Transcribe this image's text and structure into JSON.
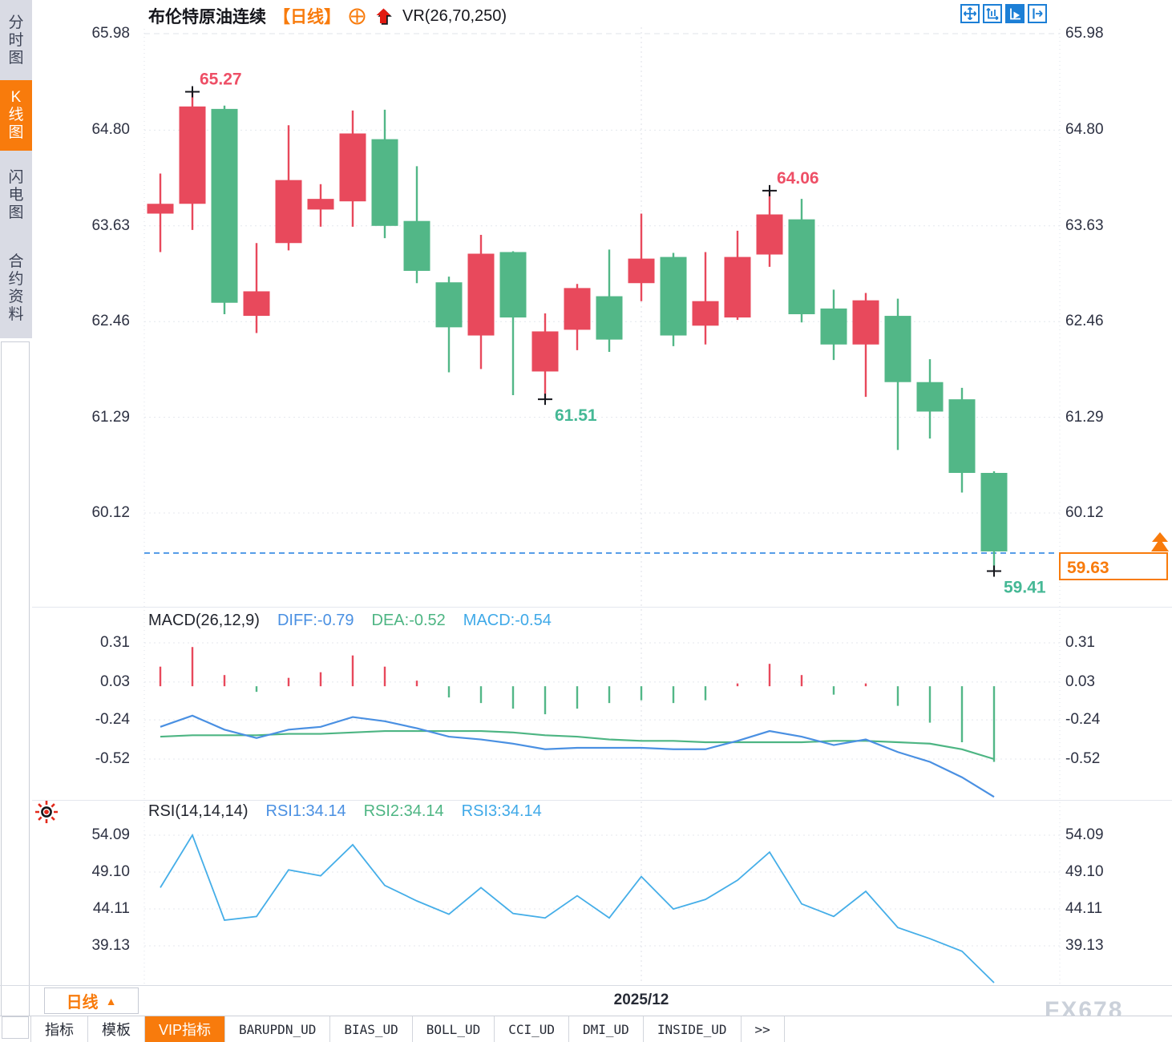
{
  "header": {
    "title": "布伦特原油连续",
    "period_tag": "【日线】",
    "vr_label": "VR(26,70,250)"
  },
  "icons": {
    "add_indicator": "circle-plus-icon",
    "signal_arrow": "red-up-arrow-icon",
    "toolbar": [
      "crosshair-move-icon",
      "axis-zoom-icon",
      "auto-scale-icon",
      "pan-right-icon"
    ],
    "rsi_settings": "sun-icon",
    "period_arrow": "up-triangle-icon",
    "price_tag_arrow": "orange-up-arrow-icon"
  },
  "sidebar": {
    "items": [
      {
        "label": "分时图",
        "active": false
      },
      {
        "label": "K线图",
        "active": true
      },
      {
        "label": "闪电图",
        "active": false
      },
      {
        "label": "合约资料",
        "active": false
      }
    ]
  },
  "price_panel": {
    "axis_labels": [
      "65.98",
      "64.80",
      "63.63",
      "62.46",
      "61.29",
      "60.12"
    ],
    "current_price": "59.63",
    "annotations": [
      "65.27",
      "64.06",
      "61.51",
      "59.41"
    ]
  },
  "macd_panel": {
    "title": "MACD(26,12,9)",
    "diff_label": "DIFF:-0.79",
    "dea_label": "DEA:-0.52",
    "macd_label": "MACD:-0.54",
    "axis_labels": [
      "0.31",
      "0.03",
      "-0.24",
      "-0.52"
    ]
  },
  "rsi_panel": {
    "title": "RSI(14,14,14)",
    "rsi1_label": "RSI1:34.14",
    "rsi2_label": "RSI2:34.14",
    "rsi3_label": "RSI3:34.14",
    "axis_labels": [
      "54.09",
      "49.10",
      "44.11",
      "39.13"
    ]
  },
  "bottom": {
    "period_button": "日线",
    "period_arrow": "▲",
    "date_label": "2025/12",
    "watermark": "FX678",
    "tabs": [
      {
        "label": "指标",
        "active": false
      },
      {
        "label": "模板",
        "active": false
      },
      {
        "label": "VIP指标",
        "active": true
      },
      {
        "label": "BARUPDN_UD",
        "active": false
      },
      {
        "label": "BIAS_UD",
        "active": false
      },
      {
        "label": "BOLL_UD",
        "active": false
      },
      {
        "label": "CCI_UD",
        "active": false
      },
      {
        "label": "DMI_UD",
        "active": false
      },
      {
        "label": "INSIDE_UD",
        "active": false
      },
      {
        "label": ">>",
        "active": false
      }
    ]
  },
  "colors": {
    "up": "#e8495c",
    "down": "#52b787",
    "accent_orange": "#f87b0c",
    "diff_blue": "#4a90e2",
    "dea_green": "#4db583",
    "rsi_blue": "#45aee8",
    "price_line_blue": "#1f7de0",
    "annotation_red": "#ee4f66",
    "annotation_teal": "#45b895",
    "grid": "#e4e7ed",
    "marker_black": "#15161c"
  },
  "chart_data": [
    {
      "type": "candlestick",
      "title": "布伦特原油连续 日线",
      "ylim": [
        59.2,
        66.1
      ],
      "x_period_label": "2025/12",
      "current_price": 59.63,
      "annotations": [
        {
          "text": "65.27",
          "index": 1,
          "at": "high"
        },
        {
          "text": "64.06",
          "index": 19,
          "at": "high"
        },
        {
          "text": "61.51",
          "index": 12,
          "at": "low"
        },
        {
          "text": "59.41",
          "index": 26,
          "at": "low"
        }
      ],
      "candles": [
        {
          "o": 63.78,
          "h": 64.27,
          "l": 63.31,
          "c": 63.9
        },
        {
          "o": 63.9,
          "h": 65.27,
          "l": 63.58,
          "c": 65.09
        },
        {
          "o": 65.06,
          "h": 65.1,
          "l": 62.55,
          "c": 62.69
        },
        {
          "o": 62.53,
          "h": 63.42,
          "l": 62.32,
          "c": 62.83
        },
        {
          "o": 63.42,
          "h": 64.86,
          "l": 63.33,
          "c": 64.19
        },
        {
          "o": 63.83,
          "h": 64.14,
          "l": 63.62,
          "c": 63.96
        },
        {
          "o": 63.93,
          "h": 65.04,
          "l": 63.62,
          "c": 64.76
        },
        {
          "o": 64.69,
          "h": 65.05,
          "l": 63.48,
          "c": 63.63
        },
        {
          "o": 63.69,
          "h": 64.36,
          "l": 62.93,
          "c": 63.08
        },
        {
          "o": 62.94,
          "h": 63.01,
          "l": 61.84,
          "c": 62.39
        },
        {
          "o": 62.29,
          "h": 63.52,
          "l": 61.88,
          "c": 63.29
        },
        {
          "o": 63.31,
          "h": 63.32,
          "l": 61.56,
          "c": 62.51
        },
        {
          "o": 61.85,
          "h": 62.56,
          "l": 61.51,
          "c": 62.34
        },
        {
          "o": 62.36,
          "h": 62.92,
          "l": 62.11,
          "c": 62.87
        },
        {
          "o": 62.77,
          "h": 63.34,
          "l": 62.09,
          "c": 62.24
        },
        {
          "o": 62.93,
          "h": 63.78,
          "l": 62.71,
          "c": 63.23
        },
        {
          "o": 63.25,
          "h": 63.3,
          "l": 62.16,
          "c": 62.29
        },
        {
          "o": 62.41,
          "h": 63.31,
          "l": 62.18,
          "c": 62.71
        },
        {
          "o": 62.51,
          "h": 63.57,
          "l": 62.48,
          "c": 63.25
        },
        {
          "o": 63.28,
          "h": 64.06,
          "l": 63.13,
          "c": 63.77
        },
        {
          "o": 63.71,
          "h": 63.96,
          "l": 62.45,
          "c": 62.55
        },
        {
          "o": 62.62,
          "h": 62.85,
          "l": 61.99,
          "c": 62.18
        },
        {
          "o": 62.18,
          "h": 62.81,
          "l": 61.54,
          "c": 62.72
        },
        {
          "o": 62.53,
          "h": 62.74,
          "l": 60.89,
          "c": 61.72
        },
        {
          "o": 61.72,
          "h": 62.0,
          "l": 61.03,
          "c": 61.36
        },
        {
          "o": 61.51,
          "h": 61.65,
          "l": 60.37,
          "c": 60.61
        },
        {
          "o": 60.61,
          "h": 60.63,
          "l": 59.41,
          "c": 59.65
        }
      ]
    },
    {
      "type": "macd",
      "params": "26,12,9",
      "histogram_rule": "2*(DIFF-DEA)",
      "ylim": [
        -0.85,
        0.45
      ],
      "series": [
        {
          "name": "DIFF",
          "values": [
            -0.29,
            -0.21,
            -0.31,
            -0.37,
            -0.31,
            -0.29,
            -0.22,
            -0.25,
            -0.3,
            -0.36,
            -0.38,
            -0.41,
            -0.45,
            -0.44,
            -0.44,
            -0.44,
            -0.45,
            -0.45,
            -0.39,
            -0.32,
            -0.36,
            -0.42,
            -0.38,
            -0.47,
            -0.54,
            -0.65,
            -0.79
          ]
        },
        {
          "name": "DEA",
          "values": [
            -0.36,
            -0.35,
            -0.35,
            -0.35,
            -0.34,
            -0.34,
            -0.33,
            -0.32,
            -0.32,
            -0.32,
            -0.32,
            -0.33,
            -0.35,
            -0.36,
            -0.38,
            -0.39,
            -0.39,
            -0.4,
            -0.4,
            -0.4,
            -0.4,
            -0.39,
            -0.39,
            -0.4,
            -0.41,
            -0.45,
            -0.52
          ]
        }
      ]
    },
    {
      "type": "line",
      "name": "RSI(14,14,14)",
      "ylim": [
        32,
        56
      ],
      "values": [
        47.0,
        54.1,
        42.6,
        43.1,
        49.4,
        48.6,
        52.8,
        47.3,
        45.2,
        43.4,
        47.0,
        43.5,
        42.9,
        45.9,
        42.9,
        48.5,
        44.1,
        45.4,
        48.0,
        51.8,
        44.8,
        43.1,
        46.5,
        41.6,
        40.1,
        38.4,
        34.14
      ]
    }
  ]
}
